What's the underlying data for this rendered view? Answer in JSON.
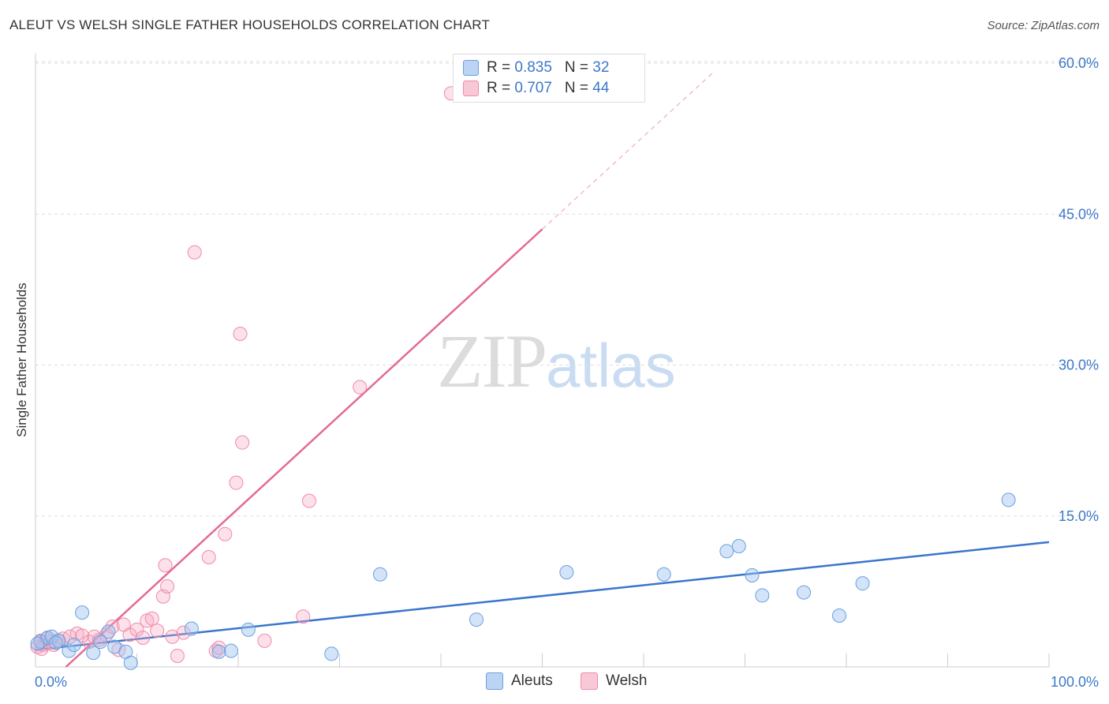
{
  "title": "ALEUT VS WELSH SINGLE FATHER HOUSEHOLDS CORRELATION CHART",
  "source": "Source: ZipAtlas.com",
  "watermark": {
    "zip": "ZIP",
    "atlas": "atlas"
  },
  "colors": {
    "aleut": "#6a9fe0",
    "aleut_line": "#3a75cc",
    "welsh": "#f08aa8",
    "welsh_line": "#e46a91",
    "tick_text": "#3d78c9",
    "grid": "#dddddd"
  },
  "legend": {
    "aleut": {
      "r_label": "R = ",
      "r_value": "0.835",
      "n_label": "N = ",
      "n_value": "32"
    },
    "welsh": {
      "r_label": "R = ",
      "r_value": "0.707",
      "n_label": "N = ",
      "n_value": "44"
    }
  },
  "chart_data": {
    "type": "scatter",
    "title": "ALEUT VS WELSH SINGLE FATHER HOUSEHOLDS CORRELATION CHART",
    "xlabel": "",
    "ylabel": "Single Father Households",
    "xlim": [
      0,
      100
    ],
    "ylim": [
      0,
      60
    ],
    "x_tick_labels": [
      "0.0%",
      "100.0%"
    ],
    "y_ticks": [
      15,
      30,
      45,
      60
    ],
    "y_tick_labels": [
      "15.0%",
      "30.0%",
      "45.0%",
      "60.0%"
    ],
    "legend_position": "bottom-center",
    "series": [
      {
        "name": "Aleuts",
        "r": 0.835,
        "n": 32,
        "trendline": {
          "x": [
            0,
            100
          ],
          "y": [
            1.7,
            12.4
          ]
        },
        "points": [
          [
            0.5,
            2.5
          ],
          [
            1.2,
            2.9
          ],
          [
            1.6,
            3.0
          ],
          [
            2.3,
            2.6
          ],
          [
            3.3,
            1.6
          ],
          [
            3.8,
            2.2
          ],
          [
            4.6,
            5.4
          ],
          [
            5.7,
            1.4
          ],
          [
            6.4,
            2.5
          ],
          [
            7.2,
            3.5
          ],
          [
            7.8,
            2.0
          ],
          [
            8.9,
            1.5
          ],
          [
            9.4,
            0.4
          ],
          [
            15.4,
            3.8
          ],
          [
            18.1,
            1.5
          ],
          [
            19.3,
            1.6
          ],
          [
            21.0,
            3.7
          ],
          [
            29.2,
            1.3
          ],
          [
            34.0,
            9.2
          ],
          [
            43.5,
            4.7
          ],
          [
            52.4,
            9.4
          ],
          [
            62.0,
            9.2
          ],
          [
            68.2,
            11.5
          ],
          [
            69.4,
            12.0
          ],
          [
            70.7,
            9.1
          ],
          [
            71.7,
            7.1
          ],
          [
            75.8,
            7.4
          ],
          [
            79.3,
            5.1
          ],
          [
            81.6,
            8.3
          ],
          [
            96.0,
            16.6
          ],
          [
            0.2,
            2.3
          ],
          [
            2.0,
            2.4
          ]
        ]
      },
      {
        "name": "Welsh",
        "r": 0.707,
        "n": 44,
        "trendline": {
          "x": [
            3,
            50
          ],
          "y": [
            0,
            43.5
          ]
        },
        "trendline_extension": {
          "x": [
            50,
            67
          ],
          "y": [
            43.5,
            59.2
          ]
        },
        "points": [
          [
            0.2,
            2.0
          ],
          [
            0.5,
            2.6
          ],
          [
            0.8,
            2.2
          ],
          [
            1.1,
            2.8
          ],
          [
            1.4,
            2.5
          ],
          [
            1.8,
            2.2
          ],
          [
            2.2,
            2.6
          ],
          [
            2.7,
            2.8
          ],
          [
            3.4,
            3.0
          ],
          [
            4.1,
            3.3
          ],
          [
            4.6,
            3.1
          ],
          [
            5.3,
            2.5
          ],
          [
            5.8,
            3.0
          ],
          [
            6.3,
            2.7
          ],
          [
            7.0,
            3.2
          ],
          [
            7.6,
            4.0
          ],
          [
            8.2,
            1.7
          ],
          [
            8.7,
            4.2
          ],
          [
            9.3,
            3.2
          ],
          [
            10.0,
            3.7
          ],
          [
            10.6,
            2.9
          ],
          [
            11.0,
            4.6
          ],
          [
            11.5,
            4.8
          ],
          [
            12.0,
            3.6
          ],
          [
            12.6,
            7.0
          ],
          [
            12.8,
            10.1
          ],
          [
            13.0,
            8.0
          ],
          [
            13.5,
            3.0
          ],
          [
            14.0,
            1.1
          ],
          [
            14.6,
            3.4
          ],
          [
            15.7,
            41.2
          ],
          [
            17.1,
            10.9
          ],
          [
            17.8,
            1.6
          ],
          [
            18.1,
            1.9
          ],
          [
            18.7,
            13.2
          ],
          [
            19.8,
            18.3
          ],
          [
            20.2,
            33.1
          ],
          [
            20.4,
            22.3
          ],
          [
            22.6,
            2.6
          ],
          [
            26.4,
            5.0
          ],
          [
            27.0,
            16.5
          ],
          [
            32.0,
            27.8
          ],
          [
            41.0,
            57.0
          ],
          [
            0.6,
            1.8
          ]
        ]
      }
    ]
  }
}
